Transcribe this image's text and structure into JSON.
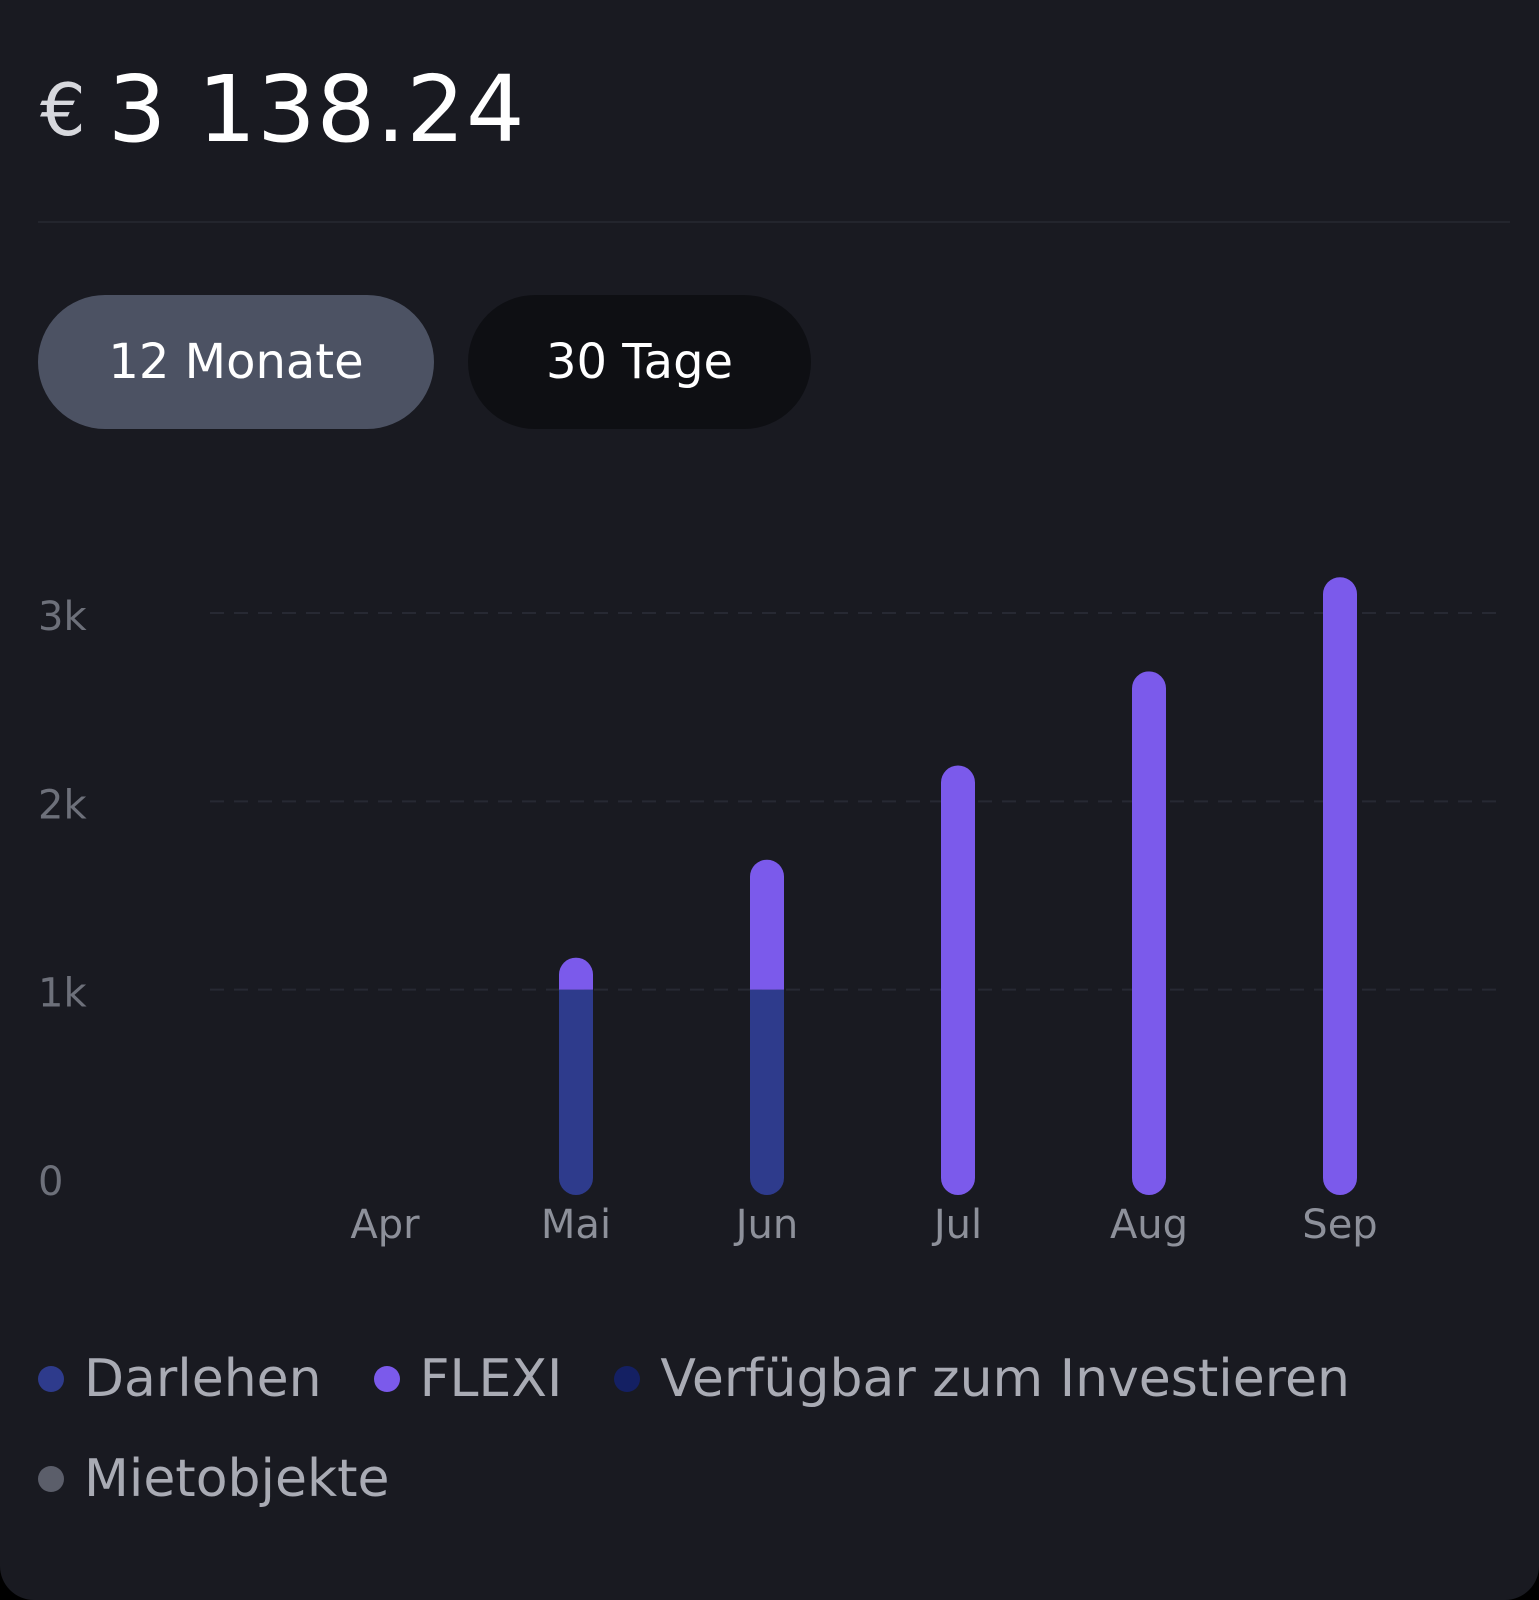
{
  "balance": {
    "currency": "€",
    "amount": "3 138.24"
  },
  "tabs": [
    {
      "label": "12 Monate",
      "active": true
    },
    {
      "label": "30 Tage",
      "active": false
    }
  ],
  "chart_data": {
    "type": "bar",
    "stacked": true,
    "categories": [
      "Apr",
      "Mai",
      "Jun",
      "Jul",
      "Aug",
      "Sep"
    ],
    "series": [
      {
        "name": "Darlehen",
        "color": "#2e3b8c",
        "values": [
          0,
          1000,
          1000,
          0,
          0,
          0
        ]
      },
      {
        "name": "FLEXI",
        "color": "#7b5aeb",
        "values": [
          0,
          80,
          600,
          2100,
          2600,
          3100
        ]
      },
      {
        "name": "Verfügbar zum Investieren",
        "color": "#142063",
        "values": [
          0,
          0,
          0,
          0,
          0,
          0
        ]
      },
      {
        "name": "Mietobjekte",
        "color": "#5b5e6a",
        "values": [
          0,
          0,
          0,
          0,
          0,
          0
        ]
      }
    ],
    "y_ticks": [
      {
        "value": 0,
        "label": "0"
      },
      {
        "value": 1000,
        "label": "1k"
      },
      {
        "value": 2000,
        "label": "2k"
      },
      {
        "value": 3000,
        "label": "3k"
      }
    ],
    "ylim": [
      0,
      3000
    ],
    "grid": "dashed horizontal",
    "legend_position": "bottom"
  }
}
